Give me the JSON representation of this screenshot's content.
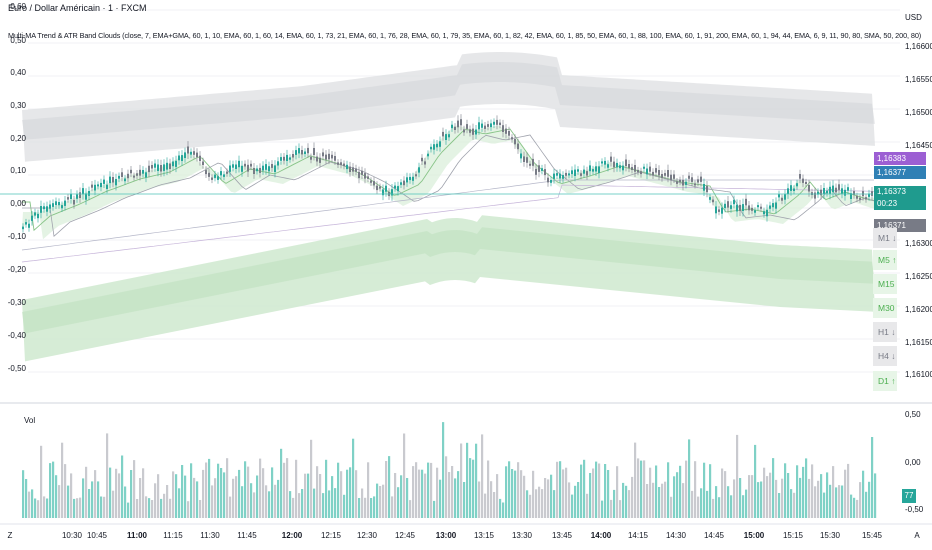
{
  "header": {
    "title": "Euro / Dollar Américain · 1 · FXCM",
    "indicator": "Multi-MA Trend & ATR Band Clouds (close, 7, EMA+GMA, 60, 1, 10, EMA, 60, 1, 60, 14, EMA, 60, 1, 73, 21, EMA, 60, 1, 76, 28, EMA, 60, 1, 79, 35, EMA, 60, 1, 82, 42, EMA, 60, 1, 85, 50, EMA, 60, 1, 88, 100, EMA, 60, 1, 91, 200, EMA, 60, 1, 94, 44, EMA, 6, 9, 11, 90, 80, SMA, 50, 200, 80)"
  },
  "left_axis": [
    "0,60",
    "0,50",
    "0,40",
    "0,30",
    "0,20",
    "0,10",
    "0,00",
    "-0,10",
    "-0,20",
    "-0,30",
    "-0,40",
    "-0,50"
  ],
  "right_axis": {
    "currency": "USD",
    "labels": [
      "1,16600",
      "1,16550",
      "1,16500",
      "1,16450",
      "1,16300",
      "1,16250",
      "1,16200",
      "1,16150",
      "1,16100"
    ],
    "price_tags": [
      {
        "value": "1,16383",
        "color": "#9c5fd3"
      },
      {
        "value": "1,16377",
        "color": "#2f80b5"
      },
      {
        "value": "1,16373",
        "color": "#1f9b8e"
      },
      {
        "value": "00:23",
        "color": "#1f9b8e"
      },
      {
        "value": "1,16371",
        "color": "#787b86"
      }
    ]
  },
  "timeframes": [
    {
      "label": "M1 ↓",
      "dir": "down"
    },
    {
      "label": "M5 ↑",
      "dir": "up"
    },
    {
      "label": "M15 ↑",
      "dir": "up"
    },
    {
      "label": "M30 ↑",
      "dir": "up"
    },
    {
      "label": "H1 ↓",
      "dir": "down"
    },
    {
      "label": "H4 ↓",
      "dir": "down"
    },
    {
      "label": "D1 ↑",
      "dir": "up"
    }
  ],
  "volume": {
    "label": "Vol",
    "right_labels": [
      "0,50",
      "0,00",
      "-0,50"
    ],
    "badge": "77"
  },
  "time_axis": [
    {
      "t": "Z",
      "bold": false
    },
    {
      "t": "10:30",
      "bold": false
    },
    {
      "t": "10:45",
      "bold": false
    },
    {
      "t": "11:00",
      "bold": true
    },
    {
      "t": "11:15",
      "bold": false
    },
    {
      "t": "11:30",
      "bold": false
    },
    {
      "t": "11:45",
      "bold": false
    },
    {
      "t": "12:00",
      "bold": true
    },
    {
      "t": "12:15",
      "bold": false
    },
    {
      "t": "12:30",
      "bold": false
    },
    {
      "t": "12:45",
      "bold": false
    },
    {
      "t": "13:00",
      "bold": true
    },
    {
      "t": "13:15",
      "bold": false
    },
    {
      "t": "13:30",
      "bold": false
    },
    {
      "t": "13:45",
      "bold": false
    },
    {
      "t": "14:00",
      "bold": true
    },
    {
      "t": "14:15",
      "bold": false
    },
    {
      "t": "14:30",
      "bold": false
    },
    {
      "t": "14:45",
      "bold": false
    },
    {
      "t": "15:00",
      "bold": true
    },
    {
      "t": "15:15",
      "bold": false
    },
    {
      "t": "15:30",
      "bold": false
    },
    {
      "t": "15:45",
      "bold": false
    },
    {
      "t": "A",
      "bold": false
    }
  ],
  "colors": {
    "up": "#26a69a",
    "down": "#787b86",
    "vol_up": "#7fd1c6",
    "vol_down": "#c9cacf",
    "band_up": "#cfe9cf",
    "band_dn": "#dedfe2"
  }
}
